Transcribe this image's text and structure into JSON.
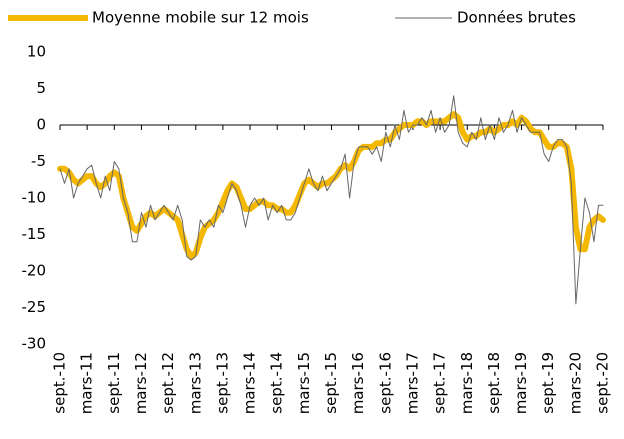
{
  "chart_data": {
    "type": "line",
    "categories": [
      "sept.-10",
      null,
      null,
      null,
      null,
      null,
      "mars-11",
      null,
      null,
      null,
      null,
      null,
      "sept.-11",
      null,
      null,
      null,
      null,
      null,
      "mars-12",
      null,
      null,
      null,
      null,
      null,
      "sept.-12",
      null,
      null,
      null,
      null,
      null,
      "mars-13",
      null,
      null,
      null,
      null,
      null,
      "sept.-13",
      null,
      null,
      null,
      null,
      null,
      "mars-14",
      null,
      null,
      null,
      null,
      null,
      "sept.-14",
      null,
      null,
      null,
      null,
      null,
      "mars-15",
      null,
      null,
      null,
      null,
      null,
      "sept.-15",
      null,
      null,
      null,
      null,
      null,
      "mars-16",
      null,
      null,
      null,
      null,
      null,
      "sept.-16",
      null,
      null,
      null,
      null,
      null,
      "mars-17",
      null,
      null,
      null,
      null,
      null,
      "sept.-17",
      null,
      null,
      null,
      null,
      null,
      "mars-18",
      null,
      null,
      null,
      null,
      null,
      "sept.-18",
      null,
      null,
      null,
      null,
      null,
      "mars-19",
      null,
      null,
      null,
      null,
      null,
      "sept.-19",
      null,
      null,
      null,
      null,
      null,
      "mars-20",
      null,
      null,
      null,
      null,
      null,
      "sept.-20"
    ],
    "series": [
      {
        "name": "Moyenne mobile sur 12 mois",
        "color": "#f5b800",
        "width": 6,
        "values": [
          -6,
          -6,
          -6.5,
          -7.5,
          -8,
          -7.5,
          -7,
          -7,
          -8,
          -8.5,
          -8,
          -7,
          -6.5,
          -7,
          -10,
          -12,
          -14,
          -14.5,
          -13.5,
          -12.5,
          -12,
          -12.5,
          -12,
          -11.5,
          -12,
          -12.5,
          -13,
          -15,
          -17,
          -18,
          -17.5,
          -15.5,
          -14,
          -13.5,
          -13,
          -12,
          -10.5,
          -9,
          -8,
          -8.5,
          -10,
          -11.5,
          -11.5,
          -11,
          -10.5,
          -10.5,
          -11,
          -11,
          -11.5,
          -11.5,
          -12,
          -12,
          -11,
          -9.5,
          -8,
          -7.5,
          -8,
          -8.5,
          -8,
          -8,
          -7.5,
          -7,
          -6,
          -5.5,
          -6,
          -5,
          -3.5,
          -3,
          -3,
          -3,
          -2.5,
          -2.5,
          -2,
          -2,
          -1,
          -0.5,
          0,
          0,
          0,
          0.5,
          0.5,
          0,
          0.5,
          0.5,
          0.5,
          0.5,
          1,
          1.5,
          1,
          -1,
          -2,
          -1.5,
          -1.5,
          -1,
          -1,
          -0.5,
          -1,
          -0.5,
          0,
          0,
          0.5,
          0,
          1,
          0.5,
          -0.5,
          -1,
          -1,
          -2,
          -3,
          -3,
          -2.5,
          -2.5,
          -3,
          -6,
          -14,
          -17,
          -17,
          -14,
          -13,
          -12.5,
          -13
        ]
      },
      {
        "name": "Données brutes",
        "color": "#666666",
        "width": 1,
        "values": [
          -6,
          -8,
          -6,
          -10,
          -8,
          -7,
          -6,
          -5.5,
          -8,
          -10,
          -7,
          -9,
          -5,
          -6,
          -10,
          -12,
          -16,
          -16,
          -12,
          -14,
          -11,
          -13,
          -12,
          -11,
          -12,
          -13,
          -11,
          -13,
          -18,
          -18.5,
          -18,
          -13,
          -14,
          -13,
          -14,
          -11,
          -12,
          -10,
          -8,
          -9,
          -11,
          -14,
          -11,
          -10,
          -11,
          -10,
          -13,
          -11,
          -12,
          -11,
          -13,
          -13,
          -12,
          -10,
          -8,
          -6,
          -8,
          -9,
          -7,
          -9,
          -8,
          -7,
          -6,
          -4,
          -10,
          -5,
          -3,
          -3,
          -3,
          -4,
          -3,
          -5,
          -1,
          -3,
          0,
          -2,
          2,
          -1,
          0,
          0,
          1,
          0,
          2,
          -1,
          1,
          -1,
          0,
          4,
          -1,
          -2.5,
          -3,
          -1,
          -2,
          1,
          -2,
          0,
          -2,
          1,
          -1,
          0,
          2,
          -1,
          1,
          0,
          -1,
          -1,
          -1,
          -4,
          -5,
          -3,
          -2,
          -2,
          -3,
          -8,
          -24.5,
          -17,
          -10,
          -12,
          -16,
          -11,
          -11
        ]
      }
    ],
    "ylim": [
      -30,
      10
    ],
    "yticks": [
      10,
      5,
      0,
      -5,
      -10,
      -15,
      -20,
      -25,
      -30
    ],
    "legend": "top",
    "grid": false
  }
}
